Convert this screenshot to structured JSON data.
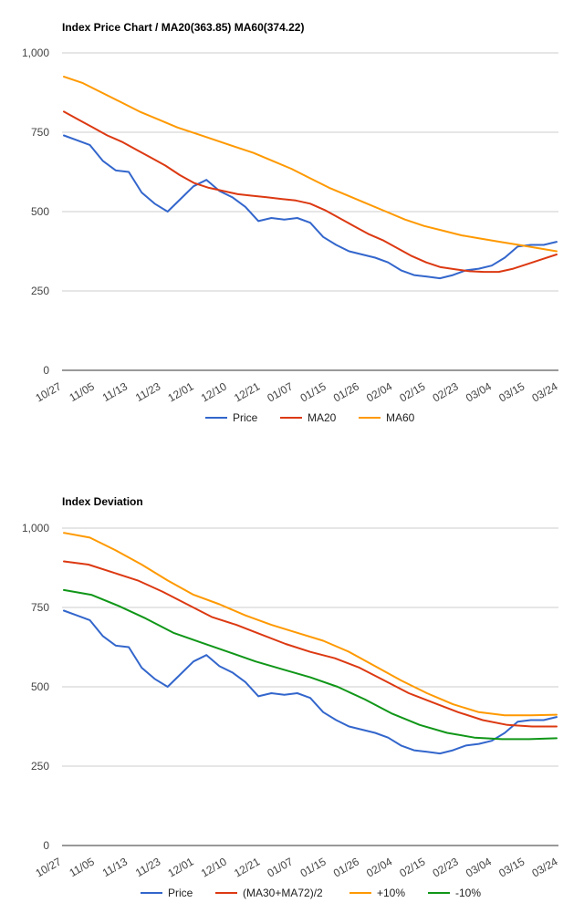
{
  "chart_data": [
    {
      "type": "line",
      "title": "Index Price Chart / MA20(363.85) MA60(374.22)",
      "xlabel": "",
      "ylabel": "",
      "ylim": [
        0,
        1000
      ],
      "yticks": [
        0,
        250,
        500,
        750,
        1000
      ],
      "ytick_labels": [
        "0",
        "250",
        "500",
        "750",
        "1,000"
      ],
      "x_tick_labels": [
        "10/27",
        "11/05",
        "11/13",
        "11/23",
        "12/01",
        "12/10",
        "12/21",
        "01/07",
        "01/15",
        "01/26",
        "02/04",
        "02/15",
        "02/23",
        "03/04",
        "03/15",
        "03/24"
      ],
      "grid": true,
      "legend_position": "bottom",
      "series": [
        {
          "name": "Price",
          "color": "#3366cc",
          "values": [
            740,
            725,
            710,
            660,
            630,
            625,
            560,
            525,
            500,
            540,
            580,
            600,
            565,
            545,
            515,
            470,
            480,
            475,
            480,
            465,
            420,
            395,
            375,
            365,
            355,
            340,
            315,
            300,
            295,
            290,
            300,
            315,
            320,
            330,
            355,
            390,
            395,
            395,
            405
          ]
        },
        {
          "name": "MA20",
          "color": "#dc3912",
          "values": [
            815,
            790,
            765,
            740,
            720,
            695,
            670,
            645,
            615,
            590,
            575,
            565,
            555,
            550,
            545,
            540,
            535,
            525,
            505,
            480,
            455,
            430,
            410,
            385,
            360,
            340,
            325,
            318,
            312,
            310,
            310,
            320,
            335,
            350,
            365
          ]
        },
        {
          "name": "MA60",
          "color": "#ff9900",
          "values": [
            925,
            905,
            875,
            845,
            815,
            790,
            765,
            745,
            725,
            705,
            685,
            660,
            635,
            605,
            575,
            550,
            525,
            500,
            475,
            455,
            440,
            425,
            415,
            405,
            395,
            385,
            375
          ]
        }
      ]
    },
    {
      "type": "line",
      "title": "Index Deviation",
      "xlabel": "",
      "ylabel": "",
      "ylim": [
        0,
        1000
      ],
      "yticks": [
        0,
        250,
        500,
        750,
        1000
      ],
      "ytick_labels": [
        "0",
        "250",
        "500",
        "750",
        "1,000"
      ],
      "x_tick_labels": [
        "10/27",
        "11/05",
        "11/13",
        "11/23",
        "12/01",
        "12/10",
        "12/21",
        "01/07",
        "01/15",
        "01/26",
        "02/04",
        "02/15",
        "02/23",
        "03/04",
        "03/15",
        "03/24"
      ],
      "grid": true,
      "legend_position": "bottom",
      "series": [
        {
          "name": "Price",
          "color": "#3366cc",
          "values": [
            740,
            725,
            710,
            660,
            630,
            625,
            560,
            525,
            500,
            540,
            580,
            600,
            565,
            545,
            515,
            470,
            480,
            475,
            480,
            465,
            420,
            395,
            375,
            365,
            355,
            340,
            315,
            300,
            295,
            290,
            300,
            315,
            320,
            330,
            355,
            390,
            395,
            395,
            405
          ]
        },
        {
          "name": "(MA30+MA72)/2",
          "color": "#dc3912",
          "values": [
            895,
            885,
            860,
            835,
            800,
            760,
            720,
            695,
            665,
            635,
            610,
            590,
            560,
            520,
            480,
            450,
            420,
            395,
            380,
            375,
            375
          ]
        },
        {
          "name": "+10%",
          "color": "#ff9900",
          "values": [
            985,
            970,
            930,
            885,
            835,
            790,
            760,
            725,
            695,
            670,
            645,
            610,
            565,
            520,
            480,
            445,
            420,
            410,
            410,
            412
          ]
        },
        {
          "name": "-10%",
          "color": "#109618",
          "values": [
            805,
            790,
            755,
            715,
            670,
            640,
            610,
            580,
            555,
            530,
            500,
            460,
            415,
            380,
            355,
            340,
            335,
            335,
            338
          ]
        }
      ]
    }
  ]
}
